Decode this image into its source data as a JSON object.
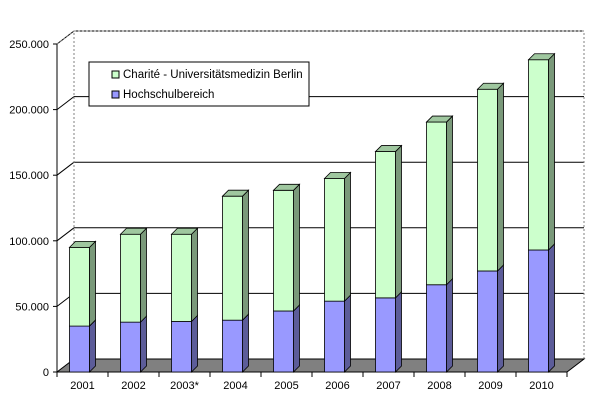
{
  "chart_data": {
    "type": "bar",
    "stacked": true,
    "three_d": true,
    "title": "",
    "xlabel": "",
    "ylabel": "",
    "categories": [
      "2001",
      "2002",
      "2003*",
      "2004",
      "2005",
      "2006",
      "2007",
      "2008",
      "2009",
      "2010"
    ],
    "series": [
      {
        "name": "Hochschulbereich",
        "color": "#9999ff",
        "values": [
          35000,
          38000,
          38500,
          39500,
          46500,
          54000,
          56500,
          66500,
          77000,
          93000
        ]
      },
      {
        "name": "Charité - Universitätsmedizin Berlin",
        "color": "#ccffcc",
        "values": [
          60000,
          67000,
          66500,
          94500,
          92000,
          93500,
          111500,
          124000,
          138500,
          145000
        ]
      }
    ],
    "ylim": [
      0,
      250000
    ],
    "yticks": [
      0,
      50000,
      100000,
      150000,
      200000,
      250000
    ],
    "ytick_labels": [
      "0",
      "50.000",
      "100.000",
      "150.000",
      "200.000",
      "250.000"
    ],
    "grid": true,
    "legend": {
      "position": "top-left",
      "entries": [
        "Charité - Universitätsmedizin Berlin",
        "Hochschulbereich"
      ]
    }
  }
}
